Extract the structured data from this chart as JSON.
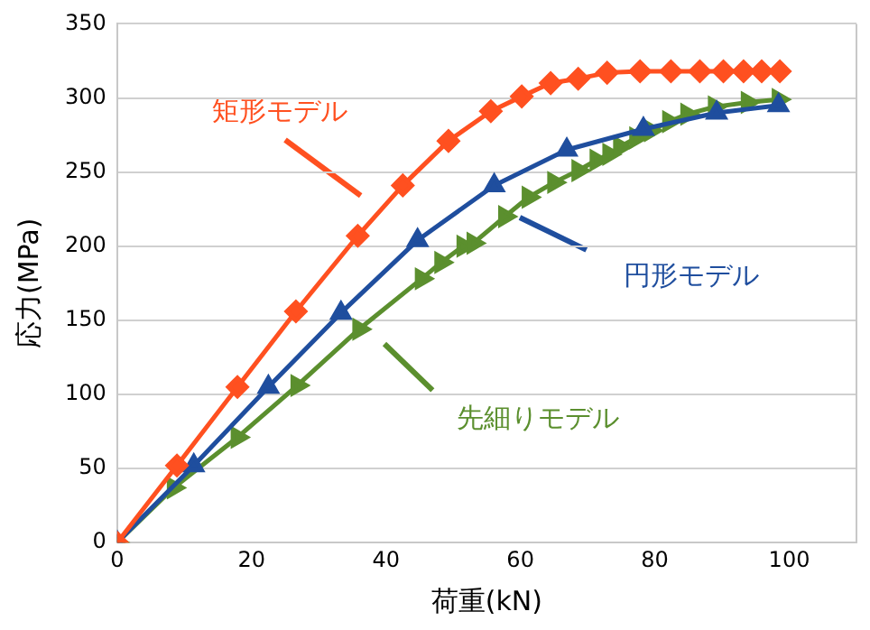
{
  "chart_data": {
    "type": "line",
    "xlabel": "荷重(kN)",
    "ylabel": "応力(MPa)",
    "xlim": [
      0,
      110
    ],
    "xticks": [
      0,
      20,
      40,
      60,
      80,
      100
    ],
    "ylim": [
      0,
      350
    ],
    "yticks": [
      0,
      50,
      100,
      150,
      200,
      250,
      300,
      350
    ],
    "grid": "y",
    "legend": false,
    "series": [
      {
        "name": "矩形モデル",
        "marker": "diamond",
        "color": "#ff5020",
        "x": [
          0,
          8.9,
          17.9,
          26.6,
          35.8,
          42.5,
          49.3,
          55.6,
          60.2,
          64.5,
          68.6,
          72.9,
          77.8,
          82.4,
          86.7,
          90.2,
          93.2,
          95.9,
          98.6
        ],
        "values": [
          0,
          52,
          105,
          156,
          207,
          241,
          271,
          291,
          301,
          310,
          313,
          317,
          318,
          318,
          318,
          318,
          318,
          318,
          318
        ]
      },
      {
        "name": "円形モデル",
        "marker": "triangle",
        "color": "#1f4e9e",
        "x": [
          0,
          11.4,
          22.5,
          33.3,
          44.7,
          56.1,
          66.9,
          78.3,
          89.2,
          98.4
        ],
        "values": [
          0,
          52,
          105,
          155,
          204,
          241,
          265,
          279,
          290,
          295
        ]
      },
      {
        "name": "先細りモデル",
        "marker": "triangle",
        "color": "#5b8f2e",
        "x": [
          0,
          8.4,
          17.9,
          26.8,
          36,
          45.3,
          48.2,
          51.5,
          53,
          57.7,
          61.2,
          65,
          68.6,
          71.3,
          73.2,
          74.8,
          77.2,
          79.4,
          82.1,
          84.8,
          88.9,
          93.8,
          98.4
        ],
        "values": [
          0,
          37,
          71,
          106,
          144,
          178,
          189,
          200,
          202,
          220,
          233,
          243,
          251,
          258,
          262,
          267,
          273,
          278,
          284,
          289,
          294,
          297,
          299
        ]
      }
    ]
  }
}
